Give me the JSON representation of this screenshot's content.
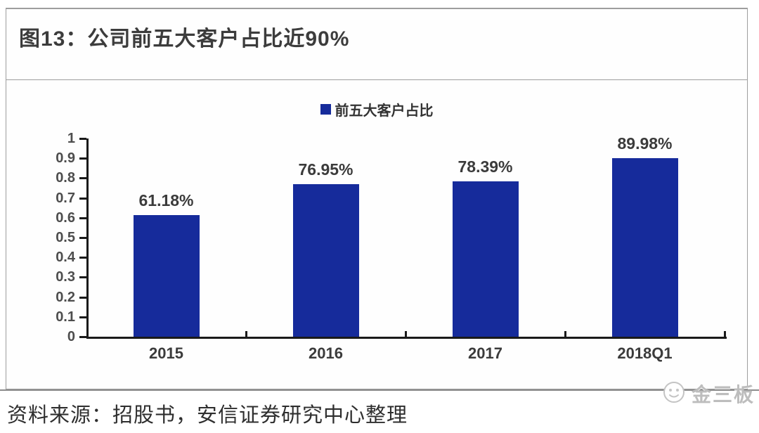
{
  "header": {
    "title": "图13：公司前五大客户占比近90%"
  },
  "legend": {
    "label": "前五大客户占比"
  },
  "footer": {
    "source": "资料来源：招股书，安信证券研究中心整理",
    "watermark": "金三板"
  },
  "colors": {
    "bar": "#162B9B",
    "axis": "#1a1a1a",
    "border": "#9e9e9e",
    "label_text": "#3b3b3b",
    "watermark_text": "#bdbdbd"
  },
  "chart_data": {
    "type": "bar",
    "title": "公司前五大客户占比近90%",
    "figure_label": "图13",
    "series_name": "前五大客户占比",
    "categories": [
      "2015",
      "2016",
      "2017",
      "2018Q1"
    ],
    "values": [
      0.6118,
      0.7695,
      0.7839,
      0.8998
    ],
    "data_labels": [
      "61.18%",
      "76.95%",
      "78.39%",
      "89.98%"
    ],
    "xlabel": "",
    "ylabel": "",
    "ylim": [
      0,
      1
    ],
    "y_ticks": [
      "0",
      "0.1",
      "0.2",
      "0.3",
      "0.4",
      "0.5",
      "0.6",
      "0.7",
      "0.8",
      "0.9",
      "1"
    ],
    "grid": false,
    "legend_position": "top-center",
    "bar_color": "#162B9B"
  }
}
